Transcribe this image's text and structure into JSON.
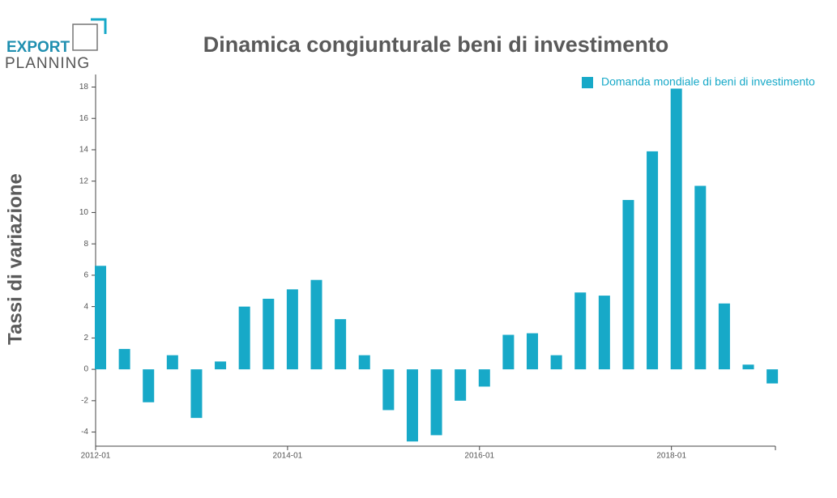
{
  "logo": {
    "line1": "EXPORT",
    "line2": "PLANNING"
  },
  "chart_data": {
    "type": "bar",
    "title": "Dinamica congiunturale beni di investimento",
    "y_label": "Tassi di variazione",
    "x": [
      "2012-01",
      "2012-04",
      "2012-07",
      "2012-10",
      "2013-01",
      "2013-04",
      "2013-07",
      "2013-10",
      "2014-01",
      "2014-04",
      "2014-07",
      "2014-10",
      "2015-01",
      "2015-04",
      "2015-07",
      "2015-10",
      "2016-01",
      "2016-04",
      "2016-07",
      "2016-10",
      "2017-01",
      "2017-04",
      "2017-07",
      "2017-10",
      "2018-01",
      "2018-04",
      "2018-07",
      "2018-10",
      "2019-01"
    ],
    "series": [
      {
        "name": "Domanda mondiale di beni di investimento",
        "color": "#17a9c8",
        "values": [
          6.6,
          1.3,
          -2.1,
          0.9,
          -3.1,
          0.5,
          4.0,
          4.5,
          5.1,
          5.7,
          3.2,
          0.9,
          -2.6,
          -4.6,
          -4.2,
          -2.0,
          -1.1,
          2.2,
          2.3,
          0.9,
          4.9,
          4.7,
          10.8,
          13.9,
          17.9,
          11.7,
          4.2,
          0.3,
          -0.9
        ]
      }
    ],
    "xlim": [
      "2012-01",
      "2019-02"
    ],
    "xticks": [
      "2012-01",
      "2014-01",
      "2016-01",
      "2018-01"
    ],
    "ylim": [
      -4.9,
      18.8
    ],
    "yticks": [
      -4,
      -2,
      0,
      2,
      4,
      6,
      8,
      10,
      12,
      14,
      16,
      18
    ],
    "legend": "top-right",
    "grid": false
  }
}
